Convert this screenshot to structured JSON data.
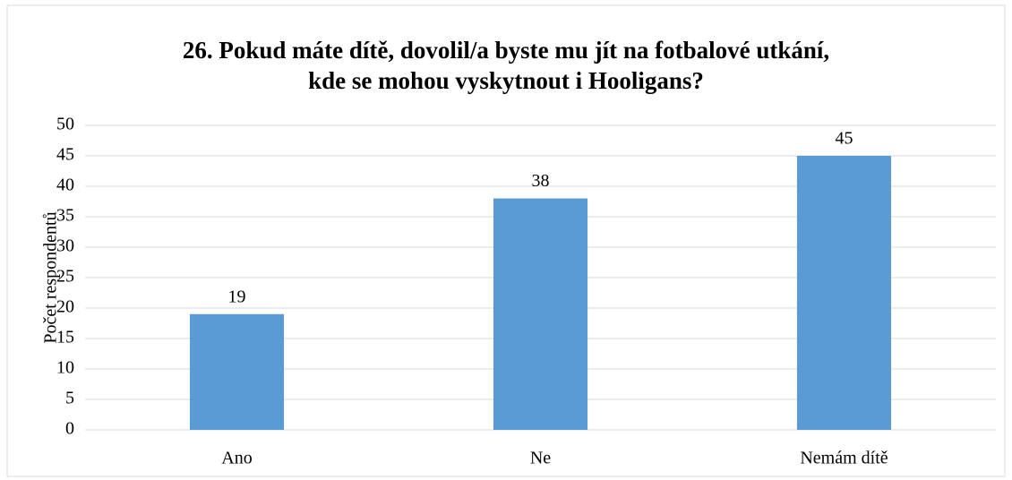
{
  "chart_data": {
    "type": "bar",
    "title": [
      "26. Pokud máte dítě, dovolil/a byste mu jít na fotbalové utkání,",
      "kde se mohou vyskytnout i Hooligans?"
    ],
    "y_label": "Počet respondentů",
    "categories": [
      "Ano",
      "Ne",
      "Nemám dítě"
    ],
    "values": [
      19,
      38,
      45
    ],
    "color": "#5b9bd5",
    "ylim": [
      0,
      50
    ],
    "yticks": [
      0,
      5,
      10,
      15,
      20,
      25,
      30,
      35,
      40,
      45,
      50
    ],
    "grid": true,
    "data_labels": true
  }
}
